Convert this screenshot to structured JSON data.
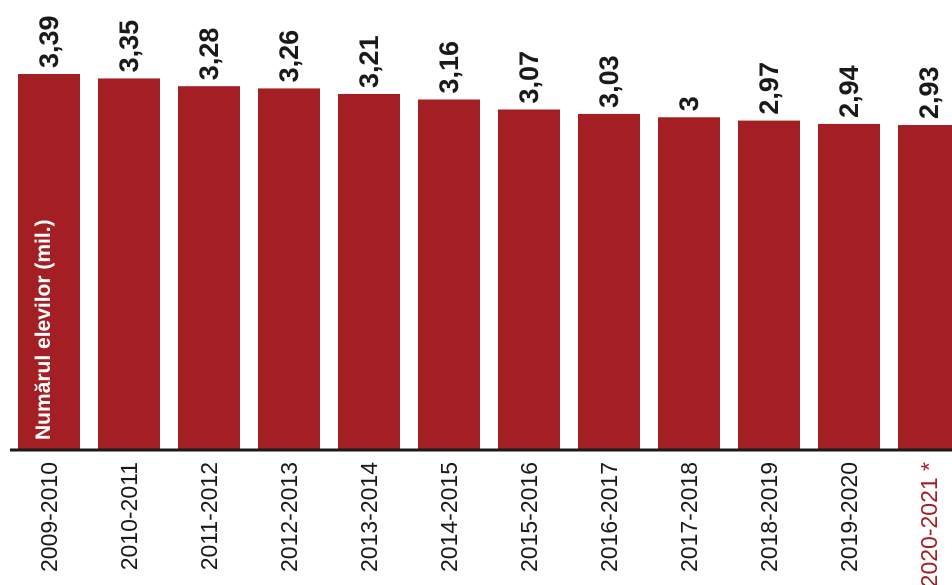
{
  "chart_data": {
    "type": "bar",
    "ylabel": "Numărul elevilor (mil.)",
    "categories": [
      "2009-2010",
      "2010-2011",
      "2011-2012",
      "2012-2013",
      "2013-2014",
      "2014-2015",
      "2015-2016",
      "2016-2017",
      "2017-2018",
      "2018-2019",
      "2019-2020",
      "2020-2021"
    ],
    "values": [
      3.39,
      3.35,
      3.28,
      3.26,
      3.21,
      3.16,
      3.07,
      3.03,
      3.0,
      2.97,
      2.94,
      2.93
    ],
    "value_labels": [
      "3,39",
      "3,35",
      "3,28",
      "3,26",
      "3,21",
      "3,16",
      "3,07",
      "3,03",
      "3",
      "2,97",
      "2,94",
      "2,93"
    ],
    "category_markers": [
      "",
      "",
      "",
      "",
      "",
      "",
      "",
      "",
      "",
      "",
      "",
      "*"
    ],
    "ylim": [
      0,
      3.39
    ],
    "grid": false,
    "colors": {
      "bar": "#a31f24",
      "axis": "#1a1a1a",
      "highlight_label": "#a31f24"
    }
  }
}
